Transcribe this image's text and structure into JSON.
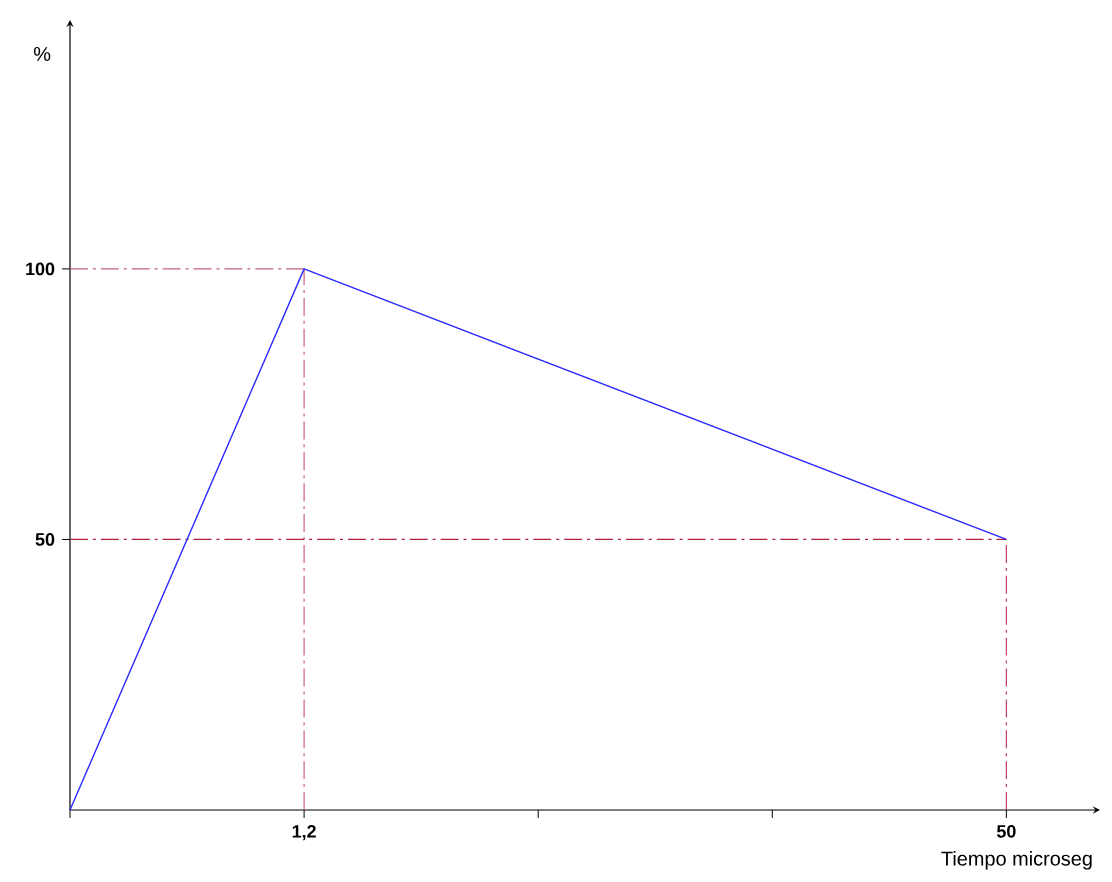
{
  "chart_data": {
    "type": "line",
    "ylabel": "%",
    "xlabel": "Tiempo  microseg",
    "categories": [
      null,
      "1,2",
      null,
      null,
      "50"
    ],
    "series": [
      {
        "color": "#2a2aff",
        "values": [
          0,
          100,
          null,
          null,
          50
        ]
      }
    ],
    "ylim": [
      0,
      146
    ],
    "yticks": [
      50,
      100
    ],
    "ref_lines": [
      {
        "axis": "y",
        "value": 100,
        "color": "#c8607e",
        "line_style": "dashdot"
      },
      {
        "axis": "x",
        "value": "1,2",
        "color": "#c8607e",
        "line_style": "dashdot"
      },
      {
        "axis": "y",
        "value": 50,
        "color": "#b0203a",
        "line_style": "dashdot"
      },
      {
        "axis": "x",
        "value": "50",
        "color": "#c04060",
        "line_style": "dashdot"
      }
    ],
    "grid": false,
    "marker": "none",
    "line_style": "solid"
  }
}
